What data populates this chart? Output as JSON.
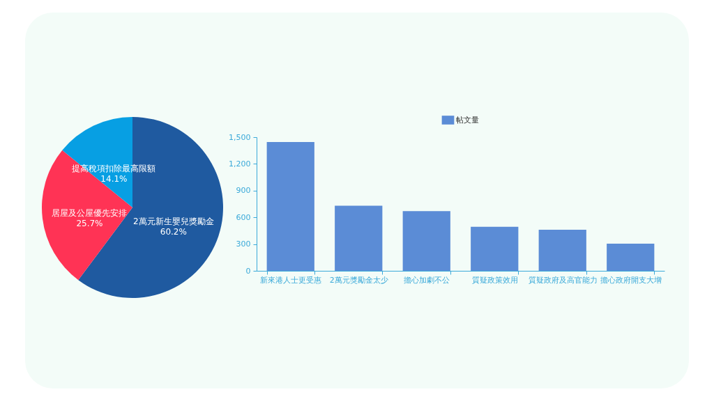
{
  "chart_data": [
    {
      "type": "pie",
      "categories": [
        "2萬元新生嬰兒獎勵金",
        "居屋及公屋優先安排",
        "提高稅項扣除最高限額"
      ],
      "values": [
        60.2,
        25.7,
        14.1
      ],
      "value_labels": [
        "60.2%",
        "25.7%",
        "14.1%"
      ],
      "colors": [
        "#1f5aa0",
        "#ff3355",
        "#079fe3"
      ]
    },
    {
      "type": "bar",
      "categories": [
        "新來港人士更受惠",
        "2萬元獎勵金太少",
        "擔心加劇不公",
        "質疑政策效用",
        "質疑政府及高官能力",
        "擔心政府開支大增"
      ],
      "series": [
        {
          "name": "帖文量",
          "color": "#5b8cd6",
          "values": [
            1445,
            730,
            670,
            495,
            460,
            305
          ]
        }
      ],
      "ylim": [
        0,
        1500
      ],
      "yticks": [
        0,
        300,
        600,
        900,
        {
          "value": 1200,
          "label": "1,200"
        },
        {
          "value": 1500,
          "label": "1,500"
        }
      ],
      "grid": false,
      "legend": "top"
    }
  ]
}
